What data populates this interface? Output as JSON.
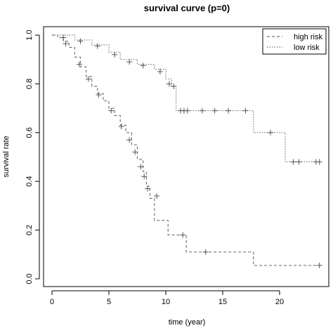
{
  "chart_data": {
    "type": "line",
    "title": "survival curve (p=0)",
    "xlabel": "time (year)",
    "ylabel": "survival rate",
    "xlim": [
      0,
      24
    ],
    "ylim": [
      0,
      1.0
    ],
    "x_ticks": [
      0,
      5,
      10,
      15,
      20
    ],
    "y_ticks": [
      0.0,
      0.2,
      0.4,
      0.6,
      0.8,
      1.0
    ],
    "y_tick_labels": [
      "0.0",
      "0.2",
      "0.4",
      "0.6",
      "0.8",
      "1.0"
    ],
    "grid": false,
    "legend_position": "top-right",
    "series": [
      {
        "name": "high risk",
        "color": "#777777",
        "dash": "dashed",
        "steps": [
          [
            0,
            1.0
          ],
          [
            0.5,
            0.99
          ],
          [
            1.0,
            0.975
          ],
          [
            1.5,
            0.95
          ],
          [
            2.0,
            0.91
          ],
          [
            2.5,
            0.87
          ],
          [
            3.0,
            0.83
          ],
          [
            3.5,
            0.79
          ],
          [
            4.0,
            0.76
          ],
          [
            4.5,
            0.73
          ],
          [
            5.0,
            0.7
          ],
          [
            5.5,
            0.67
          ],
          [
            6.0,
            0.63
          ],
          [
            6.5,
            0.6
          ],
          [
            7.0,
            0.55
          ],
          [
            7.5,
            0.49
          ],
          [
            8.0,
            0.44
          ],
          [
            8.3,
            0.38
          ],
          [
            8.6,
            0.33
          ],
          [
            9.0,
            0.24
          ],
          [
            10.2,
            0.18
          ],
          [
            11.8,
            0.11
          ],
          [
            17.7,
            0.055
          ],
          [
            23.6,
            0.055
          ]
        ],
        "censor": [
          [
            1.2,
            0.965
          ],
          [
            2.4,
            0.88
          ],
          [
            3.2,
            0.82
          ],
          [
            4.1,
            0.755
          ],
          [
            5.2,
            0.69
          ],
          [
            6.1,
            0.625
          ],
          [
            6.8,
            0.57
          ],
          [
            7.3,
            0.52
          ],
          [
            7.8,
            0.46
          ],
          [
            8.1,
            0.42
          ],
          [
            8.4,
            0.37
          ],
          [
            9.2,
            0.34
          ],
          [
            11.5,
            0.18
          ],
          [
            13.5,
            0.11
          ],
          [
            23.5,
            0.055
          ]
        ]
      },
      {
        "name": "low risk",
        "color": "#777777",
        "dash": "dotted",
        "steps": [
          [
            0,
            1.0
          ],
          [
            2.0,
            0.98
          ],
          [
            3.5,
            0.96
          ],
          [
            5.0,
            0.93
          ],
          [
            6.0,
            0.9
          ],
          [
            7.5,
            0.88
          ],
          [
            9.0,
            0.86
          ],
          [
            10.0,
            0.82
          ],
          [
            10.5,
            0.79
          ],
          [
            10.9,
            0.69
          ],
          [
            17.7,
            0.6
          ],
          [
            20.5,
            0.48
          ],
          [
            23.6,
            0.48
          ]
        ],
        "censor": [
          [
            1.0,
            0.99
          ],
          [
            2.5,
            0.975
          ],
          [
            4.0,
            0.955
          ],
          [
            5.5,
            0.92
          ],
          [
            6.8,
            0.89
          ],
          [
            8.0,
            0.875
          ],
          [
            9.5,
            0.85
          ],
          [
            10.3,
            0.8
          ],
          [
            10.7,
            0.79
          ],
          [
            11.3,
            0.69
          ],
          [
            11.6,
            0.69
          ],
          [
            11.9,
            0.69
          ],
          [
            13.2,
            0.69
          ],
          [
            14.3,
            0.69
          ],
          [
            15.5,
            0.69
          ],
          [
            17.0,
            0.69
          ],
          [
            19.2,
            0.6
          ],
          [
            21.2,
            0.48
          ],
          [
            21.7,
            0.48
          ],
          [
            23.2,
            0.48
          ],
          [
            23.5,
            0.48
          ]
        ]
      }
    ]
  }
}
